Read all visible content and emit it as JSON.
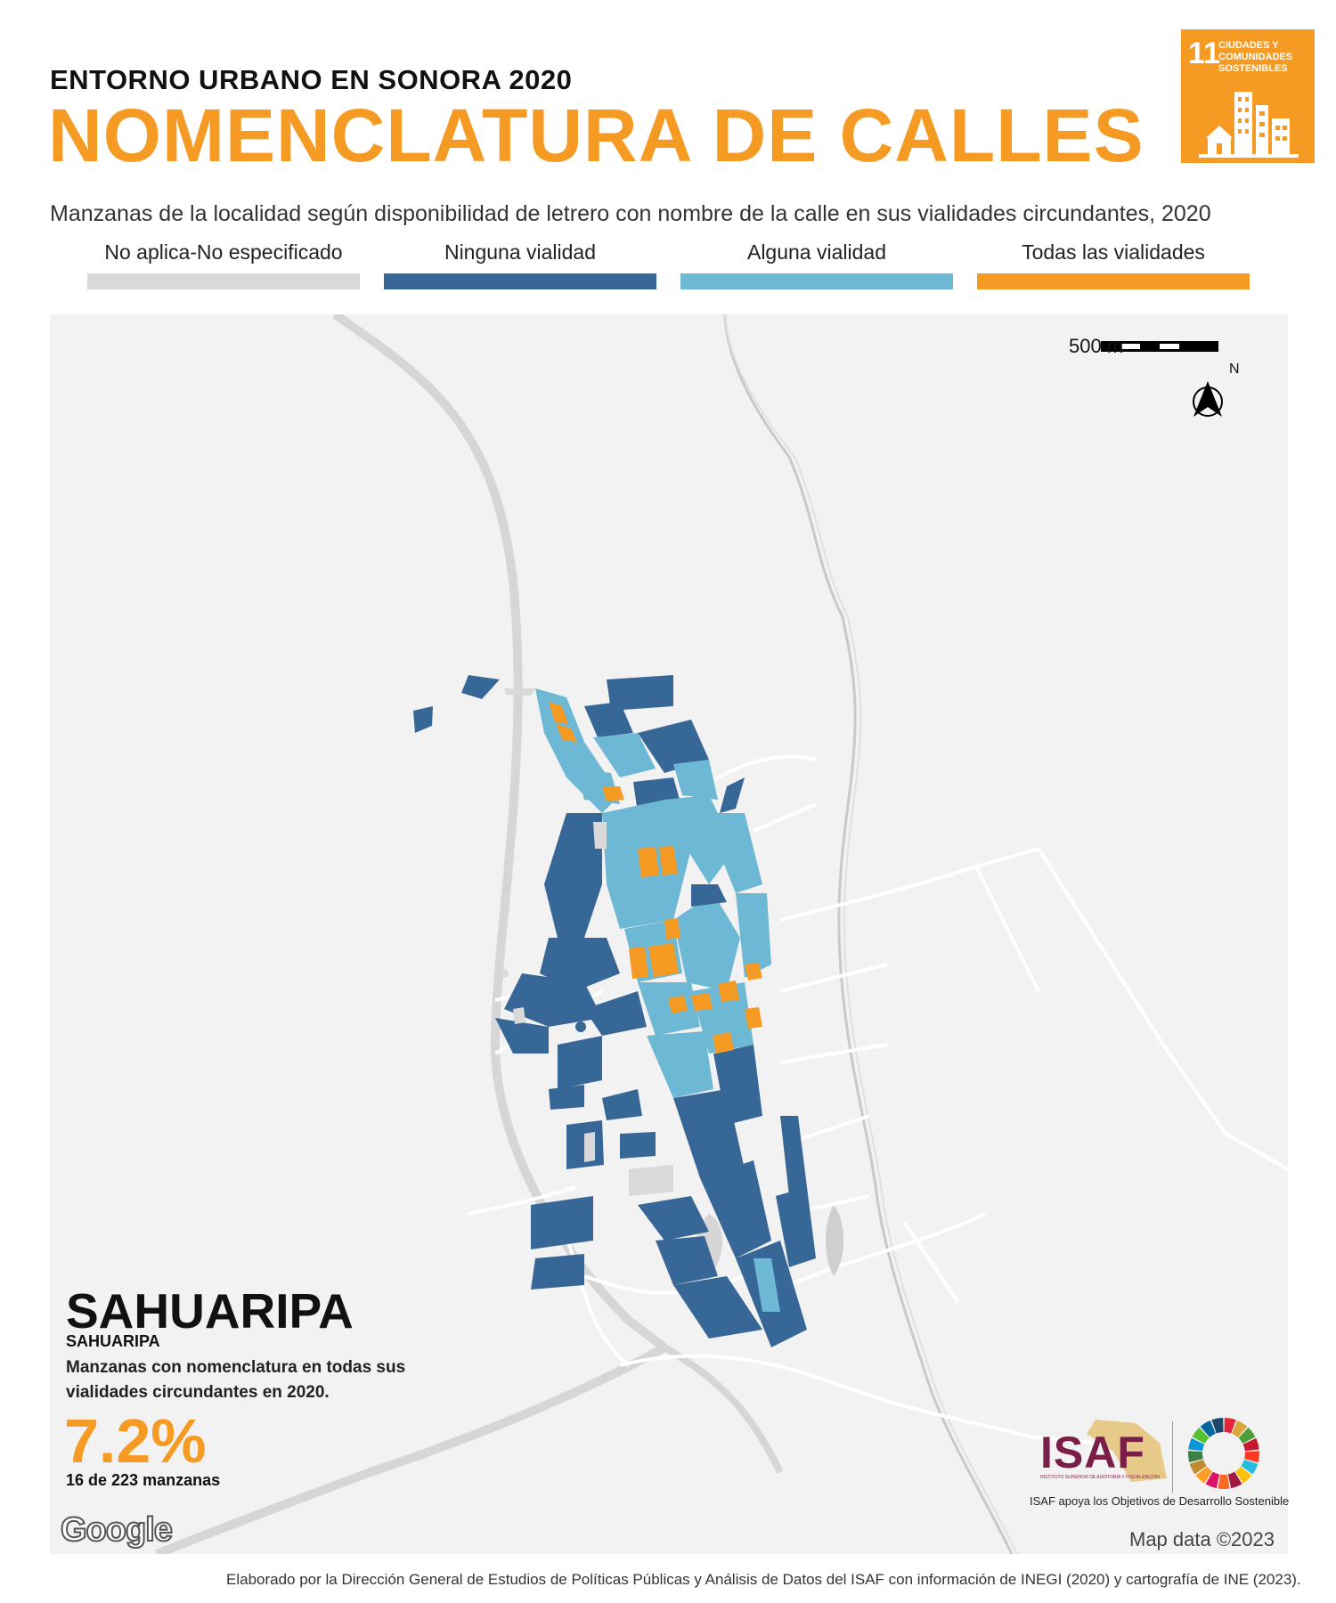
{
  "header": {
    "kicker": "ENTORNO URBANO EN SONORA 2020",
    "title": "NOMENCLATURA DE CALLES",
    "subtitle": "Manzanas de la localidad según disponibilidad de letrero con nombre de la calle en sus vialidades circundantes, 2020"
  },
  "sdg_badge": {
    "number": "11",
    "label": "CIUDADES Y COMUNIDADES SOSTENIBLES",
    "color": "#F59A23"
  },
  "legend": [
    {
      "label": "No aplica-No especificado",
      "color": "#D9D9D9"
    },
    {
      "label": "Ninguna vialidad",
      "color": "#376796"
    },
    {
      "label": "Alguna vialidad",
      "color": "#6DB8D4"
    },
    {
      "label": "Todas las vialidades",
      "color": "#F59A23"
    }
  ],
  "map": {
    "scale_label": "500 m",
    "north_label": "N",
    "attribution": "Map data ©2023",
    "google_logo": "Google"
  },
  "locality": {
    "municipality": "SAHUARIPA",
    "locality": "SAHUARIPA",
    "description": "Manzanas con nomenclatura en todas sus vialidades circundantes en 2020.",
    "percentage": "7.2%",
    "count": "16 de 223 manzanas"
  },
  "logos": {
    "isaf": "ISAF",
    "isaf_subtext": "INSTITUTO SUPERIOR DE AUDITORÍA Y FISCALIZACIÓN",
    "caption": "ISAF apoya los Objetivos de Desarrollo Sostenible"
  },
  "footer": "Elaborado por la Dirección General de Estudios de Políticas Públicas y Análisis de Datos del ISAF con información de INEGI (2020) y cartografía de INE (2023)."
}
